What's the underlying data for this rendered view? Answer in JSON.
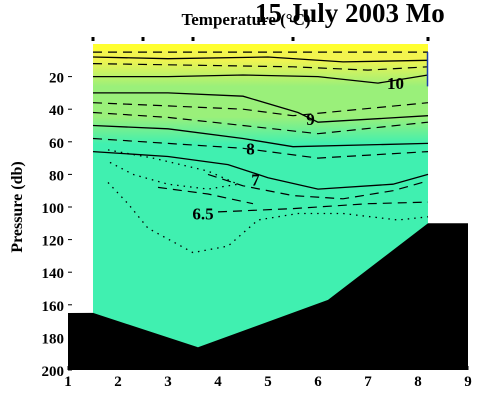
{
  "chart_data": {
    "type": "contour",
    "title": "15 July 2003 Mo",
    "subtitle": "Temperature (°C)",
    "xlabel": "",
    "ylabel": "Pressure (db)",
    "xlim": [
      1,
      9
    ],
    "ylim": [
      200,
      0
    ],
    "x_ticks": [
      "1",
      "2",
      "3",
      "4",
      "5",
      "6",
      "7",
      "8",
      "9"
    ],
    "y_ticks": [
      "20",
      "40",
      "60",
      "80",
      "100",
      "120",
      "140",
      "160",
      "180",
      "200"
    ],
    "station_x": [
      1.5,
      2.5,
      3.5,
      5.5,
      8.2
    ],
    "bathymetry": {
      "x": [
        1.0,
        1.5,
        3.6,
        6.2,
        8.2,
        9.0
      ],
      "depth": [
        165,
        165,
        186,
        157,
        110,
        110
      ]
    },
    "data_extent": {
      "x": [
        1.5,
        8.2
      ],
      "depth": [
        0,
        186
      ]
    },
    "contour_labels": [
      {
        "text": "10",
        "x": 7.55,
        "y": 24
      },
      {
        "text": "9",
        "x": 5.85,
        "y": 46
      },
      {
        "text": "8",
        "x": 4.65,
        "y": 64
      },
      {
        "text": "7",
        "x": 4.75,
        "y": 83
      },
      {
        "text": "6.5",
        "x": 3.7,
        "y": 104
      }
    ],
    "solid_contours": [
      [
        [
          1.5,
          8
        ],
        [
          3.0,
          9
        ],
        [
          5.0,
          8
        ],
        [
          6.5,
          11
        ],
        [
          8.2,
          10
        ]
      ],
      [
        [
          1.5,
          20
        ],
        [
          3.0,
          20
        ],
        [
          4.5,
          19
        ],
        [
          6.0,
          20
        ],
        [
          7.2,
          24
        ],
        [
          8.2,
          19
        ]
      ],
      [
        [
          1.5,
          30
        ],
        [
          3.0,
          30
        ],
        [
          4.5,
          32
        ],
        [
          5.6,
          42
        ],
        [
          6.0,
          48
        ],
        [
          8.2,
          44
        ]
      ],
      [
        [
          1.5,
          50
        ],
        [
          3.0,
          52
        ],
        [
          4.5,
          58
        ],
        [
          5.5,
          63
        ],
        [
          8.2,
          61
        ]
      ],
      [
        [
          1.5,
          66
        ],
        [
          3.0,
          69
        ],
        [
          4.2,
          74
        ],
        [
          5.0,
          82
        ],
        [
          6.0,
          89
        ],
        [
          7.5,
          86
        ],
        [
          8.2,
          80
        ]
      ]
    ],
    "dashed_contours": [
      [
        [
          1.5,
          5
        ],
        [
          4.0,
          5
        ],
        [
          6.0,
          5
        ],
        [
          8.2,
          5
        ]
      ],
      [
        [
          1.5,
          12
        ],
        [
          3.5,
          13
        ],
        [
          5.5,
          14
        ],
        [
          7.0,
          16
        ],
        [
          8.2,
          14
        ]
      ],
      [
        [
          1.5,
          36
        ],
        [
          3.0,
          38
        ],
        [
          4.5,
          40
        ],
        [
          5.5,
          44
        ],
        [
          8.2,
          36
        ]
      ],
      [
        [
          1.5,
          42
        ],
        [
          3.0,
          45
        ],
        [
          4.5,
          50
        ],
        [
          6.0,
          55
        ],
        [
          8.2,
          48
        ]
      ],
      [
        [
          1.5,
          58
        ],
        [
          3.0,
          61
        ],
        [
          4.5,
          64
        ],
        [
          6.0,
          70
        ],
        [
          8.2,
          66
        ]
      ],
      [
        [
          3.8,
          80
        ],
        [
          4.5,
          87
        ],
        [
          5.5,
          93
        ],
        [
          6.5,
          95
        ],
        [
          7.5,
          90
        ],
        [
          8.2,
          84
        ]
      ],
      [
        [
          2.8,
          88
        ],
        [
          3.8,
          92
        ],
        [
          4.7,
          98
        ]
      ],
      [
        [
          4.0,
          103
        ],
        [
          5.5,
          101
        ],
        [
          7.0,
          98
        ],
        [
          8.2,
          97
        ]
      ]
    ],
    "dotted_contours": [
      [
        [
          1.8,
          65
        ],
        [
          2.7,
          70
        ],
        [
          3.8,
          78
        ],
        [
          4.4,
          86
        ],
        [
          3.8,
          89
        ],
        [
          3.0,
          86
        ],
        [
          2.3,
          80
        ],
        [
          1.8,
          72
        ]
      ],
      [
        [
          1.8,
          85
        ],
        [
          2.2,
          98
        ],
        [
          2.6,
          113
        ],
        [
          3.5,
          128
        ],
        [
          4.2,
          124
        ],
        [
          4.8,
          108
        ],
        [
          5.6,
          104
        ],
        [
          6.5,
          104
        ],
        [
          7.6,
          108
        ],
        [
          8.2,
          106
        ]
      ]
    ],
    "colors": {
      "fill_cold": "#40f0b0",
      "fill_mid": "#9af07a",
      "fill_warm": "#f3f44f",
      "top_cap": "#ffff30",
      "land": "#000000",
      "contour": "#000000",
      "edge_marker": "#1a3faa"
    }
  }
}
